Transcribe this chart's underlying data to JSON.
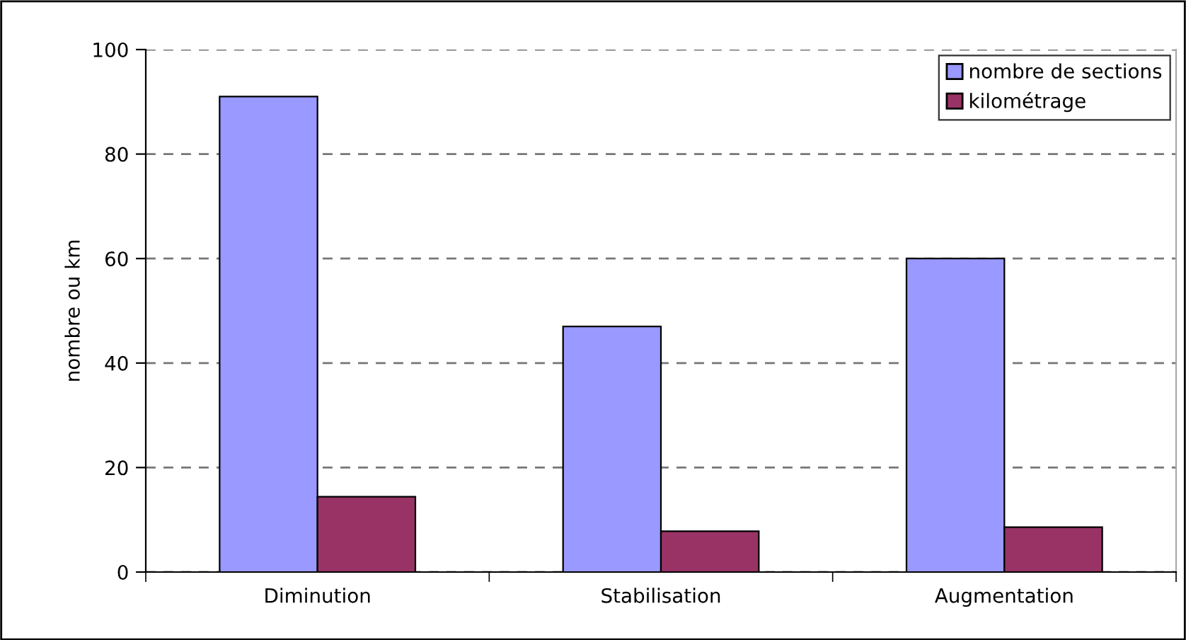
{
  "chart_data": {
    "type": "bar",
    "ylabel": "nombre ou km",
    "categories": [
      "Diminution",
      "Stabilisation",
      "Augmentation"
    ],
    "series": [
      {
        "name": "nombre de sections",
        "color": "#9999ff",
        "values": [
          91,
          47,
          60
        ]
      },
      {
        "name": "kilométrage",
        "color": "#993366",
        "values": [
          14.4,
          7.8,
          8.6
        ]
      }
    ],
    "ylim": [
      0,
      100
    ],
    "yticks": [
      0,
      20,
      40,
      60,
      80,
      100
    ],
    "grid": "y",
    "legend": "top right"
  }
}
